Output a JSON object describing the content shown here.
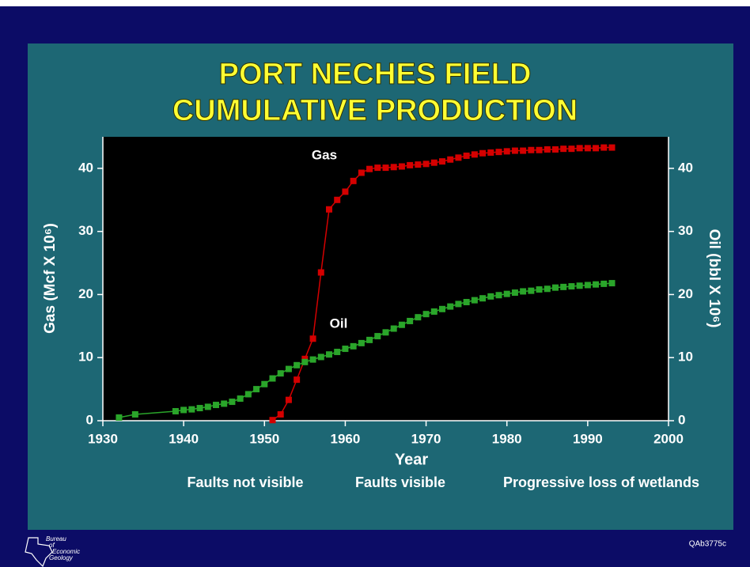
{
  "chart_data": {
    "type": "line",
    "title_lines": [
      "PORT NECHES FIELD",
      "CUMULATIVE PRODUCTION"
    ],
    "x_label": "Year",
    "y_label": "Gas (Mcf X 10⁶)",
    "y2_label": "Oil (bbl X 10⁶)",
    "xlim": [
      1930,
      2000
    ],
    "xticks": [
      1930,
      1940,
      1950,
      1960,
      1970,
      1980,
      1990,
      2000
    ],
    "ylim": [
      0,
      45
    ],
    "yticks": [
      0,
      10,
      20,
      30,
      40
    ],
    "y2lim": [
      0,
      45
    ],
    "y2ticks": [
      0,
      10,
      20,
      30,
      40
    ],
    "series": [
      {
        "name": "Gas",
        "color": "#d40000",
        "x": [
          1951,
          1952,
          1953,
          1954,
          1955,
          1956,
          1957,
          1958,
          1959,
          1960,
          1961,
          1962,
          1963,
          1964,
          1965,
          1966,
          1967,
          1968,
          1969,
          1970,
          1971,
          1972,
          1973,
          1974,
          1975,
          1976,
          1977,
          1978,
          1979,
          1980,
          1981,
          1982,
          1983,
          1984,
          1985,
          1986,
          1987,
          1988,
          1989,
          1990,
          1991,
          1992,
          1993
        ],
        "values": [
          0.1,
          1.0,
          3.3,
          6.5,
          9.8,
          13.0,
          23.5,
          33.5,
          35.0,
          36.3,
          38.0,
          39.3,
          39.9,
          40.1,
          40.1,
          40.2,
          40.3,
          40.5,
          40.6,
          40.7,
          40.9,
          41.1,
          41.4,
          41.7,
          42.0,
          42.2,
          42.4,
          42.5,
          42.6,
          42.7,
          42.8,
          42.8,
          42.9,
          42.9,
          43.0,
          43.0,
          43.1,
          43.1,
          43.2,
          43.2,
          43.2,
          43.3,
          43.3
        ]
      },
      {
        "name": "Oil",
        "color": "#2aa52a",
        "axis": "y2",
        "x": [
          1932,
          1934,
          1939,
          1940,
          1941,
          1942,
          1943,
          1944,
          1945,
          1946,
          1947,
          1948,
          1949,
          1950,
          1951,
          1952,
          1953,
          1954,
          1955,
          1956,
          1957,
          1958,
          1959,
          1960,
          1961,
          1962,
          1963,
          1964,
          1965,
          1966,
          1967,
          1968,
          1969,
          1970,
          1971,
          1972,
          1973,
          1974,
          1975,
          1976,
          1977,
          1978,
          1979,
          1980,
          1981,
          1982,
          1983,
          1984,
          1985,
          1986,
          1987,
          1988,
          1989,
          1990,
          1991,
          1992,
          1993
        ],
        "values": [
          0.5,
          1.0,
          1.5,
          1.7,
          1.8,
          2.0,
          2.2,
          2.5,
          2.7,
          3.0,
          3.5,
          4.2,
          5.0,
          5.8,
          6.7,
          7.5,
          8.2,
          8.8,
          9.3,
          9.7,
          10.1,
          10.5,
          10.9,
          11.4,
          11.8,
          12.3,
          12.8,
          13.4,
          14.0,
          14.6,
          15.2,
          15.8,
          16.4,
          16.9,
          17.3,
          17.7,
          18.1,
          18.5,
          18.8,
          19.1,
          19.4,
          19.7,
          19.9,
          20.1,
          20.3,
          20.5,
          20.6,
          20.8,
          20.9,
          21.1,
          21.2,
          21.3,
          21.4,
          21.5,
          21.6,
          21.7,
          21.8
        ]
      }
    ],
    "annotations": [
      "Faults not visible",
      "Faults visible",
      "Progressive loss of wetlands"
    ],
    "footer_code": "QAb3775c",
    "logo_lines": [
      "Bureau",
      "of",
      "Economic",
      "Geology"
    ]
  }
}
